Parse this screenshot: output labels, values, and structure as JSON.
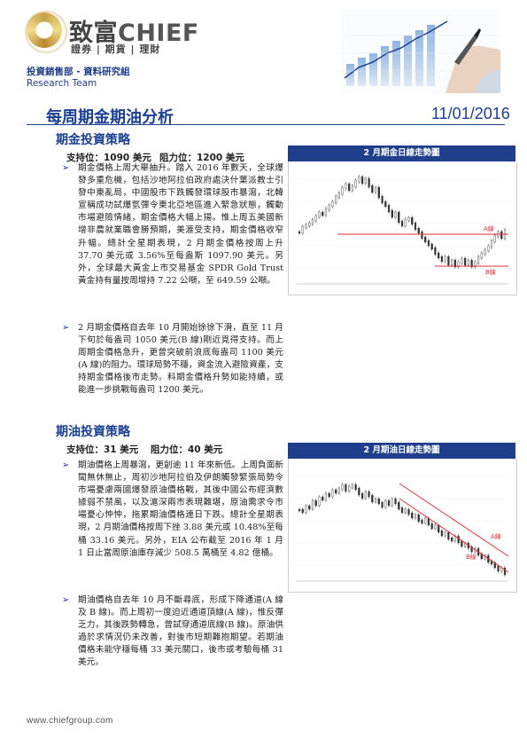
{
  "header": {
    "brand_cn": "致富",
    "brand_en": "CHIEF",
    "slogan": "證券 | 期貨 | 理財",
    "department": "投資銷售部 - 資料研究組",
    "team": "Research Team"
  },
  "report": {
    "title": "每周期金期油分析",
    "date": "11/01/2016"
  },
  "gold": {
    "heading": "期金投資策略",
    "support_label": "支持位：1090 美元",
    "resistance_label": "阻力位：1200 美元",
    "para1": "期金價格上周大舉抽升。踏入 2016 年數天，全球爆發多重危機，包括沙地阿拉伯政府處決什葉派教士引發中東亂局，中國股市下跌觸發環球股市暴瀉，北韓宣稱成功試爆氫彈令東北亞地區進入緊急狀態，觸動市場避險情緒，期金價格大幅上揚。惟上周五美國新增非農就業職會勝預期，美滙受支持，期金價格收窄升幅。總計全星期表現，2 月期金價格按周上升 37.70 美元或 3.56%至每盎斯 1097.90 美元。另外，全球最大黃金上市交易基金 SPDR Gold Trust 黃金持有量按周增持 7.22 公噸，至 649.59 公噸。",
    "para2": "2 月期金價格自去年 10 月開始徐徐下滑，直至 11 月下旬於每盎司 1050 美元(B 線)剛近覓得支持。而上周期金價格急升，更曾突破前浪底每盎司 1100 美元(A 線)的阻力。環球局勢不穩，資金流入避險資產，支持期金價格後市走勢。料期金價格升勢如能持續，或能進一步挑戰每盎司 1200 美元。",
    "chart_title": "2 月期金日線走勢圖",
    "chart_label_a": "A線",
    "chart_label_b": "B線"
  },
  "oil": {
    "heading": "期油投資策略",
    "support_label": "支持位：31 美元",
    "resistance_label": "阻力位：40 美元",
    "para1": "期油價格上周暴瀉，更創逾 11 年來新低。上周負面新聞無休無止，周初沙地阿拉伯及伊朗觸發緊張局勢令市場憂慮兩國爆發原油價格戰，其後中國公布經濟數據弱不禁風，以及滬深兩市表現難堪，原油需求令市場憂心忡忡，拖累期油價格連日下跌。總計全星期表現，2 月期油價格按周下挫 3.88 美元或 10.48%至每桶 33.16 美元。另外，EIA 公布截至 2016 年 1 月 1 日止當周原油庫存減少 508.5 萬桶至 4.82 億桶。",
    "para2": "期油價格自去年 10 月不斷尋底，形成下降通道(A 線及 B 線)。而上周初一度迫近通道頂線(A 線)，惟反彈乏力，其後跌勢轉急，曾試穿通道底線(B 線)。原油供過於求情況仍未改善，對後市短期難抱期望。若期油價格未能守穩每桶 33 美元關口，後市或考驗每桶 31 美元。",
    "chart_title": "2 月期油日線走勢圖",
    "chart_label_a": "A線",
    "chart_label_b": "B線"
  },
  "footer": {
    "url": "www.chiefgroup.com"
  },
  "colors": {
    "brand_blue": "#1a3f93",
    "gold_accent": "#c8a24a",
    "trend_line": "#e0303a"
  },
  "icons": {
    "bullet": "arrow-bullet-icon"
  }
}
